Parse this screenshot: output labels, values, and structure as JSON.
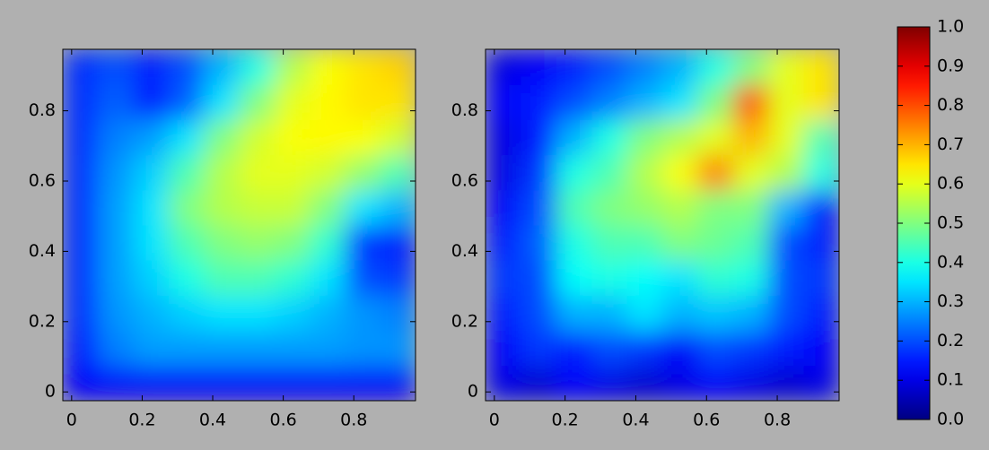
{
  "chart_data": [
    {
      "type": "heatmap",
      "colormap": "jet",
      "x": [
        0.025,
        0.125,
        0.225,
        0.325,
        0.425,
        0.525,
        0.625,
        0.725,
        0.825,
        0.925
      ],
      "y": [
        0.025,
        0.125,
        0.225,
        0.325,
        0.425,
        0.525,
        0.625,
        0.725,
        0.825,
        0.925
      ],
      "values": [
        [
          0.12,
          0.12,
          0.12,
          0.12,
          0.12,
          0.12,
          0.12,
          0.12,
          0.12,
          0.12
        ],
        [
          0.15,
          0.25,
          0.28,
          0.28,
          0.28,
          0.28,
          0.28,
          0.28,
          0.27,
          0.27
        ],
        [
          0.17,
          0.27,
          0.3,
          0.33,
          0.35,
          0.35,
          0.33,
          0.3,
          0.27,
          0.25
        ],
        [
          0.17,
          0.28,
          0.33,
          0.4,
          0.45,
          0.45,
          0.42,
          0.35,
          0.2,
          0.18
        ],
        [
          0.17,
          0.28,
          0.35,
          0.45,
          0.5,
          0.52,
          0.5,
          0.42,
          0.18,
          0.15
        ],
        [
          0.17,
          0.28,
          0.35,
          0.5,
          0.55,
          0.57,
          0.57,
          0.5,
          0.35,
          0.3
        ],
        [
          0.17,
          0.27,
          0.33,
          0.45,
          0.55,
          0.6,
          0.6,
          0.58,
          0.52,
          0.45
        ],
        [
          0.17,
          0.25,
          0.28,
          0.35,
          0.5,
          0.58,
          0.62,
          0.63,
          0.62,
          0.58
        ],
        [
          0.17,
          0.22,
          0.15,
          0.22,
          0.35,
          0.5,
          0.6,
          0.63,
          0.65,
          0.65
        ],
        [
          0.17,
          0.2,
          0.15,
          0.2,
          0.3,
          0.4,
          0.55,
          0.62,
          0.65,
          0.67
        ]
      ],
      "xlim": [
        -0.025,
        0.975
      ],
      "ylim": [
        -0.025,
        0.975
      ],
      "xticks": [
        0,
        0.2,
        0.4,
        0.6,
        0.8
      ],
      "yticks": [
        0,
        0.2,
        0.4,
        0.6,
        0.8
      ]
    },
    {
      "type": "heatmap",
      "colormap": "jet",
      "x": [
        0.025,
        0.125,
        0.225,
        0.325,
        0.425,
        0.525,
        0.625,
        0.725,
        0.825,
        0.925
      ],
      "y": [
        0.025,
        0.125,
        0.225,
        0.325,
        0.425,
        0.525,
        0.625,
        0.725,
        0.825,
        0.925
      ],
      "values": [
        [
          0.1,
          0.08,
          0.12,
          0.1,
          0.08,
          0.1,
          0.12,
          0.1,
          0.08,
          0.1
        ],
        [
          0.12,
          0.18,
          0.15,
          0.2,
          0.18,
          0.12,
          0.2,
          0.18,
          0.15,
          0.12
        ],
        [
          0.15,
          0.2,
          0.3,
          0.3,
          0.35,
          0.3,
          0.32,
          0.3,
          0.2,
          0.15
        ],
        [
          0.18,
          0.2,
          0.38,
          0.4,
          0.38,
          0.35,
          0.42,
          0.4,
          0.2,
          0.18
        ],
        [
          0.15,
          0.22,
          0.4,
          0.45,
          0.45,
          0.5,
          0.48,
          0.45,
          0.2,
          0.15
        ],
        [
          0.12,
          0.2,
          0.45,
          0.5,
          0.52,
          0.55,
          0.5,
          0.5,
          0.3,
          0.15
        ],
        [
          0.1,
          0.18,
          0.4,
          0.45,
          0.55,
          0.62,
          0.75,
          0.6,
          0.55,
          0.4
        ],
        [
          0.1,
          0.15,
          0.3,
          0.4,
          0.5,
          0.55,
          0.6,
          0.7,
          0.6,
          0.45
        ],
        [
          0.12,
          0.15,
          0.2,
          0.25,
          0.3,
          0.35,
          0.5,
          0.8,
          0.6,
          0.65
        ],
        [
          0.1,
          0.12,
          0.15,
          0.2,
          0.25,
          0.3,
          0.4,
          0.5,
          0.6,
          0.65
        ]
      ],
      "xlim": [
        -0.025,
        0.975
      ],
      "ylim": [
        -0.025,
        0.975
      ],
      "xticks": [
        0,
        0.2,
        0.4,
        0.6,
        0.8
      ],
      "yticks": [
        0,
        0.2,
        0.4,
        0.6,
        0.8
      ]
    },
    {
      "type": "colorbar",
      "colormap": "jet",
      "ylim": [
        0,
        1
      ],
      "yticks": [
        {
          "value": 0,
          "label": "0.0"
        },
        0.1,
        0.2,
        0.3,
        0.4,
        0.5,
        0.6,
        0.7,
        0.8,
        0.9,
        {
          "value": 1,
          "label": "1.0"
        }
      ]
    }
  ]
}
